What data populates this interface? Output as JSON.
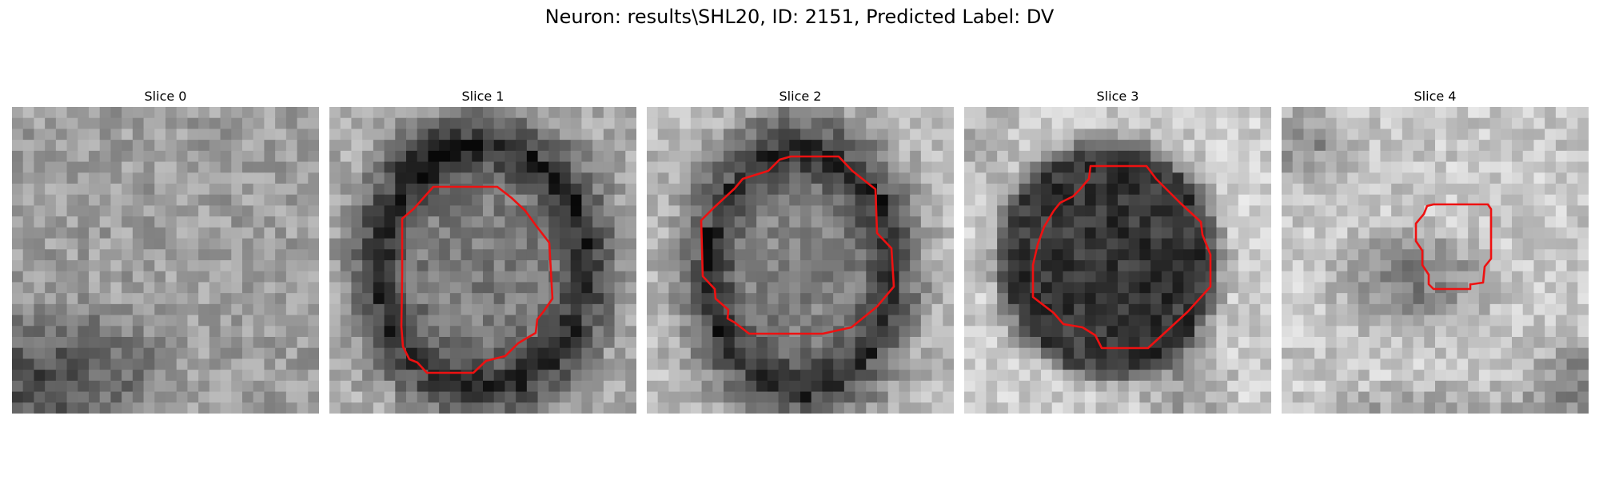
{
  "figure": {
    "title": "Neuron: results\\SHL20, ID: 2151, Predicted Label: DV"
  },
  "colors": {
    "contour": "#ee1111",
    "background": "#ffffff"
  },
  "panels": [
    {
      "title": "Slice 0",
      "has_contour": false
    },
    {
      "title": "Slice 1",
      "has_contour": true
    },
    {
      "title": "Slice 2",
      "has_contour": true
    },
    {
      "title": "Slice 3",
      "has_contour": true
    },
    {
      "title": "Slice 4",
      "has_contour": true
    }
  ]
}
